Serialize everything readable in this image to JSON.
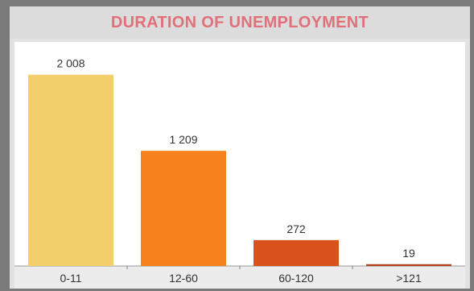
{
  "chart_data": {
    "type": "bar",
    "title": "DURATION OF UNEMPLOYMENT",
    "categories": [
      "0-11",
      "12-60",
      "60-120",
      ">121"
    ],
    "values": [
      2008,
      1209,
      272,
      19
    ],
    "value_labels": [
      "2 008",
      "1 209",
      "272",
      "19"
    ],
    "colors": [
      "#f2cf6a",
      "#f6811d",
      "#d8521c",
      "#b2401a"
    ],
    "ylim": [
      0,
      2200
    ],
    "grid": false,
    "legend": "none"
  }
}
